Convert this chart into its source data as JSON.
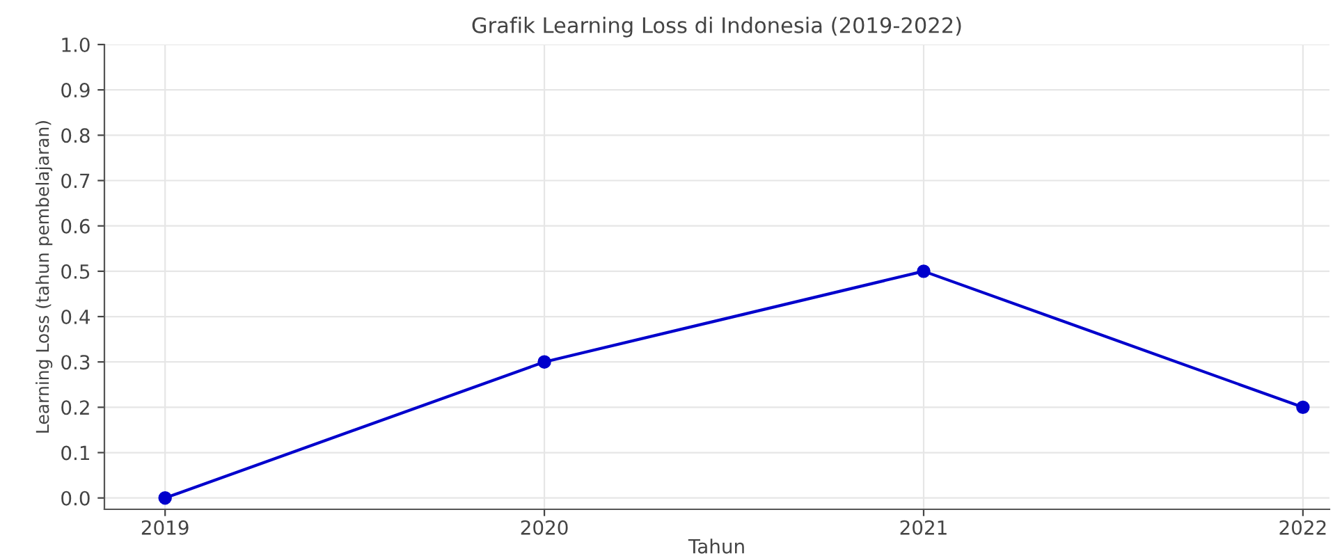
{
  "chart_data": {
    "type": "line",
    "title": "Grafik Learning Loss di Indonesia (2019-2022)",
    "xlabel": "Tahun",
    "ylabel": "Learning Loss (tahun pembelajaran)",
    "x": [
      2019,
      2020,
      2021,
      2022
    ],
    "series": [
      {
        "color": "#0000cc",
        "values": [
          0.0,
          0.3,
          0.5,
          0.2
        ]
      }
    ],
    "xlim": [
      2018.84,
      2022.07
    ],
    "xticks": [
      2019,
      2020,
      2021,
      2022
    ],
    "ylim": [
      -0.025,
      1.0
    ],
    "yticks": [
      {
        "value": 0,
        "label": "0.0"
      },
      0.1,
      0.2,
      0.3,
      0.4,
      0.5,
      0.6,
      0.7,
      0.8,
      0.9,
      {
        "value": 1,
        "label": "1.0"
      }
    ],
    "grid": true,
    "marker": "circle",
    "line_style": "solid"
  }
}
